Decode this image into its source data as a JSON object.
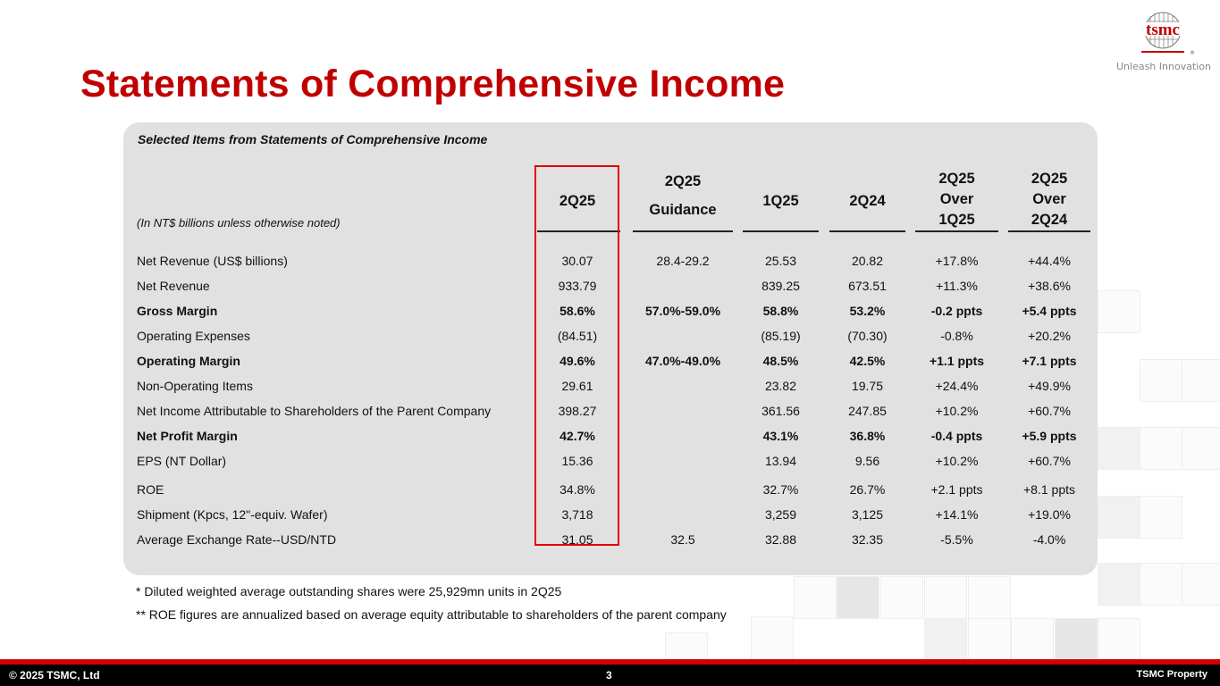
{
  "title": "Statements of Comprehensive Income",
  "logo": {
    "text": "tsmc",
    "tagline": "Unleash Innovation",
    "mark": "®"
  },
  "table": {
    "subtitle": "Selected Items from Statements of Comprehensive Income",
    "units_note": "(In NT$ billions unless otherwise noted)",
    "headers": {
      "c1": [
        "2Q25"
      ],
      "c2": [
        "2Q25",
        "Guidance"
      ],
      "c3": [
        "1Q25"
      ],
      "c4": [
        "2Q24"
      ],
      "c5": [
        "2Q25",
        "Over",
        "1Q25"
      ],
      "c6": [
        "2Q25",
        "Over",
        "2Q24"
      ]
    },
    "rows": [
      {
        "label": "Net Revenue (US$ billions)",
        "bold": false,
        "values": [
          "30.07",
          "28.4-29.2",
          "25.53",
          "20.82",
          "+17.8%",
          "+44.4%"
        ]
      },
      {
        "label": "Net Revenue",
        "bold": false,
        "values": [
          "933.79",
          "",
          "839.25",
          "673.51",
          "+11.3%",
          "+38.6%"
        ]
      },
      {
        "label": "Gross Margin",
        "bold": true,
        "values": [
          "58.6%",
          "57.0%-59.0%",
          "58.8%",
          "53.2%",
          "-0.2 ppts",
          "+5.4 ppts"
        ]
      },
      {
        "label": "Operating Expenses",
        "bold": false,
        "values": [
          "(84.51)",
          "",
          "(85.19)",
          "(70.30)",
          "-0.8%",
          "+20.2%"
        ]
      },
      {
        "label": "Operating Margin",
        "bold": true,
        "values": [
          "49.6%",
          "47.0%-49.0%",
          "48.5%",
          "42.5%",
          "+1.1 ppts",
          "+7.1 ppts"
        ]
      },
      {
        "label": "Non-Operating Items",
        "bold": false,
        "values": [
          "29.61",
          "",
          "23.82",
          "19.75",
          "+24.4%",
          "+49.9%"
        ]
      },
      {
        "label": "Net Income Attributable to Shareholders of the Parent Company",
        "bold": false,
        "values": [
          "398.27",
          "",
          "361.56",
          "247.85",
          "+10.2%",
          "+60.7%"
        ]
      },
      {
        "label": "Net Profit Margin",
        "bold": true,
        "values": [
          "42.7%",
          "",
          "43.1%",
          "36.8%",
          "-0.4 ppts",
          "+5.9 ppts"
        ]
      },
      {
        "label": "EPS (NT Dollar)",
        "bold": false,
        "values": [
          "15.36",
          "",
          "13.94",
          "9.56",
          "+10.2%",
          "+60.7%"
        ]
      },
      {
        "label": "ROE",
        "bold": false,
        "values": [
          "34.8%",
          "",
          "32.7%",
          "26.7%",
          "+2.1 ppts",
          "+8.1 ppts"
        ]
      },
      {
        "label": "Shipment (Kpcs, 12\"-equiv. Wafer)",
        "bold": false,
        "values": [
          "3,718",
          "",
          "3,259",
          "3,125",
          "+14.1%",
          "+19.0%"
        ]
      },
      {
        "label": "Average Exchange Rate--USD/NTD",
        "bold": false,
        "values": [
          "31.05",
          "32.5",
          "32.88",
          "32.35",
          "-5.5%",
          "-4.0%"
        ]
      }
    ]
  },
  "notes": [
    "*    Diluted weighted average outstanding shares were 25,929mn units in 2Q25",
    "**  ROE figures are annualized based on average equity attributable to shareholders of the parent company"
  ],
  "footer": {
    "copyright": "© 2025 TSMC, Ltd",
    "page": "3",
    "property": "TSMC Property"
  },
  "colors": {
    "title": "#c00000",
    "highlight": "#e00000",
    "panel": "#e1e1e1",
    "footer_bar": "#d00000"
  }
}
